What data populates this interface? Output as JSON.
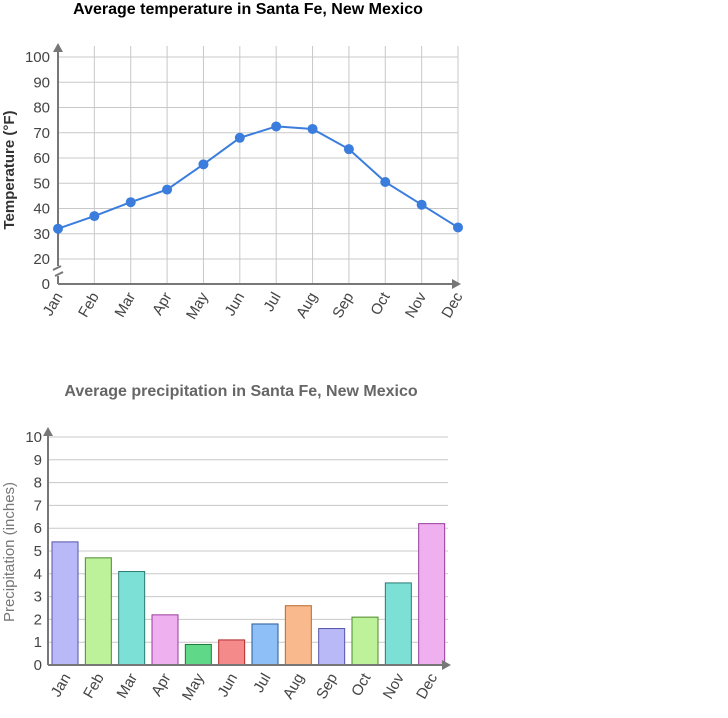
{
  "chart_data": [
    {
      "type": "line",
      "title": "Average temperature in Santa Fe, New Mexico",
      "xlabel": "",
      "ylabel": "Temperature (°F)",
      "categories": [
        "Jan",
        "Feb",
        "Mar",
        "Apr",
        "May",
        "Jun",
        "Jul",
        "Aug",
        "Sep",
        "Oct",
        "Nov",
        "Dec"
      ],
      "values": [
        32,
        37,
        42.5,
        47.5,
        57.5,
        68,
        72.5,
        71.5,
        63.5,
        50.5,
        41.5,
        32.5
      ],
      "y_ticks": [
        "0",
        "20",
        "30",
        "40",
        "50",
        "60",
        "70",
        "80",
        "90",
        "100"
      ],
      "ylim": [
        0,
        100
      ],
      "axis_break": true,
      "grid": true,
      "color": "#3b7ddd"
    },
    {
      "type": "bar",
      "title": "Average precipitation in Santa Fe, New Mexico",
      "xlabel": "",
      "ylabel": "Precipitation (inches)",
      "categories": [
        "Jan",
        "Feb",
        "Mar",
        "Apr",
        "May",
        "Jun",
        "Jul",
        "Aug",
        "Sep",
        "Oct",
        "Nov",
        "Dec"
      ],
      "values": [
        5.4,
        4.7,
        4.1,
        2.2,
        0.9,
        1.1,
        1.8,
        2.6,
        1.6,
        2.1,
        3.6,
        6.2
      ],
      "y_ticks": [
        "0",
        "1",
        "2",
        "3",
        "4",
        "5",
        "6",
        "7",
        "8",
        "9",
        "10"
      ],
      "ylim": [
        0,
        10
      ],
      "grid": true,
      "colors": [
        {
          "fill": "#b9b9f7",
          "stroke": "#5555aa"
        },
        {
          "fill": "#bdf29a",
          "stroke": "#4c8a2a"
        },
        {
          "fill": "#7de0d6",
          "stroke": "#2a7a72"
        },
        {
          "fill": "#efb0f0",
          "stroke": "#9a3a9c"
        },
        {
          "fill": "#5fd888",
          "stroke": "#1f7a3c"
        },
        {
          "fill": "#f58a8a",
          "stroke": "#b02a2a"
        },
        {
          "fill": "#8ec0f7",
          "stroke": "#2a5a9a"
        },
        {
          "fill": "#fab98c",
          "stroke": "#b8682a"
        },
        {
          "fill": "#b9b9f7",
          "stroke": "#5555aa"
        },
        {
          "fill": "#bdf29a",
          "stroke": "#4c8a2a"
        },
        {
          "fill": "#7de0d6",
          "stroke": "#2a7a72"
        },
        {
          "fill": "#efb0f0",
          "stroke": "#9a3a9c"
        }
      ]
    }
  ]
}
